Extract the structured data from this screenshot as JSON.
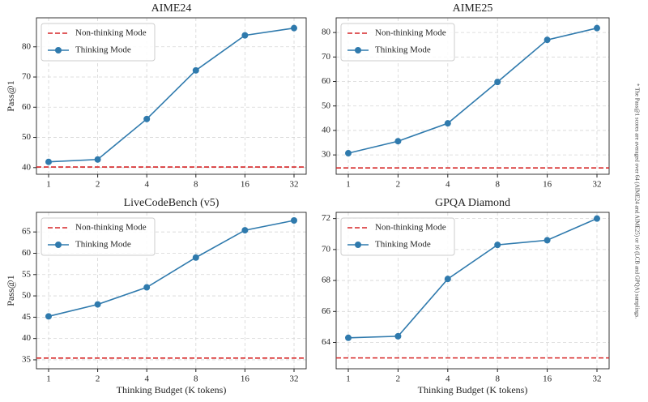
{
  "chart_data": [
    {
      "type": "line",
      "title": "AIME24",
      "ylabel": "Pass@1",
      "categories": [
        "1",
        "2",
        "4",
        "8",
        "16",
        "32"
      ],
      "ylim": [
        37.8,
        89.6
      ],
      "yticks": [
        40,
        50,
        60,
        70,
        80
      ],
      "grid": true,
      "legend": "upper left",
      "series": [
        {
          "name": "Non-thinking Mode",
          "color": "#d62728",
          "linestyle": "dashed",
          "hline": 40.2
        },
        {
          "name": "Thinking Mode",
          "color": "#2f7aad",
          "marker": "o",
          "values": [
            41.9,
            42.7,
            56.1,
            72.2,
            83.8,
            86.2
          ]
        }
      ]
    },
    {
      "type": "line",
      "title": "AIME25",
      "categories": [
        "1",
        "2",
        "4",
        "8",
        "16",
        "32"
      ],
      "ylim": [
        22.1,
        86.0
      ],
      "yticks": [
        30,
        40,
        50,
        60,
        70,
        80
      ],
      "grid": true,
      "legend": "upper left",
      "series": [
        {
          "name": "Non-thinking Mode",
          "color": "#d62728",
          "linestyle": "dashed",
          "hline": 24.7
        },
        {
          "name": "Thinking Mode",
          "color": "#2f7aad",
          "marker": "o",
          "values": [
            30.7,
            35.6,
            42.9,
            59.8,
            77.0,
            81.8
          ]
        }
      ]
    },
    {
      "type": "line",
      "title": "LiveCodeBench (v5)",
      "ylabel": "Pass@1",
      "xlabel": "Thinking Budget (K tokens)",
      "categories": [
        "1",
        "2",
        "4",
        "8",
        "16",
        "32"
      ],
      "ylim": [
        32.9,
        69.6
      ],
      "yticks": [
        35,
        40,
        45,
        50,
        55,
        60,
        65
      ],
      "grid": true,
      "legend": "upper left",
      "series": [
        {
          "name": "Non-thinking Mode",
          "color": "#d62728",
          "linestyle": "dashed",
          "hline": 35.4
        },
        {
          "name": "Thinking Mode",
          "color": "#2f7aad",
          "marker": "o",
          "values": [
            45.2,
            48.0,
            52.0,
            59.0,
            65.4,
            67.7
          ]
        }
      ]
    },
    {
      "type": "line",
      "title": "GPQA Diamond",
      "xlabel": "Thinking Budget (K tokens)",
      "categories": [
        "1",
        "2",
        "4",
        "8",
        "16",
        "32"
      ],
      "ylim": [
        62.3,
        72.4
      ],
      "yticks": [
        64,
        66,
        68,
        70,
        72
      ],
      "grid": true,
      "legend": "upper left",
      "series": [
        {
          "name": "Non-thinking Mode",
          "color": "#d62728",
          "linestyle": "dashed",
          "hline": 63.0
        },
        {
          "name": "Thinking Mode",
          "color": "#2f7aad",
          "marker": "o",
          "values": [
            64.3,
            64.4,
            68.1,
            70.3,
            70.6,
            72.0
          ]
        }
      ]
    }
  ],
  "footnote": "* The Pass@1 scores are averaged over 64 (AIME24 and AIME25) or 16 (LCB and GPQA) samplings."
}
